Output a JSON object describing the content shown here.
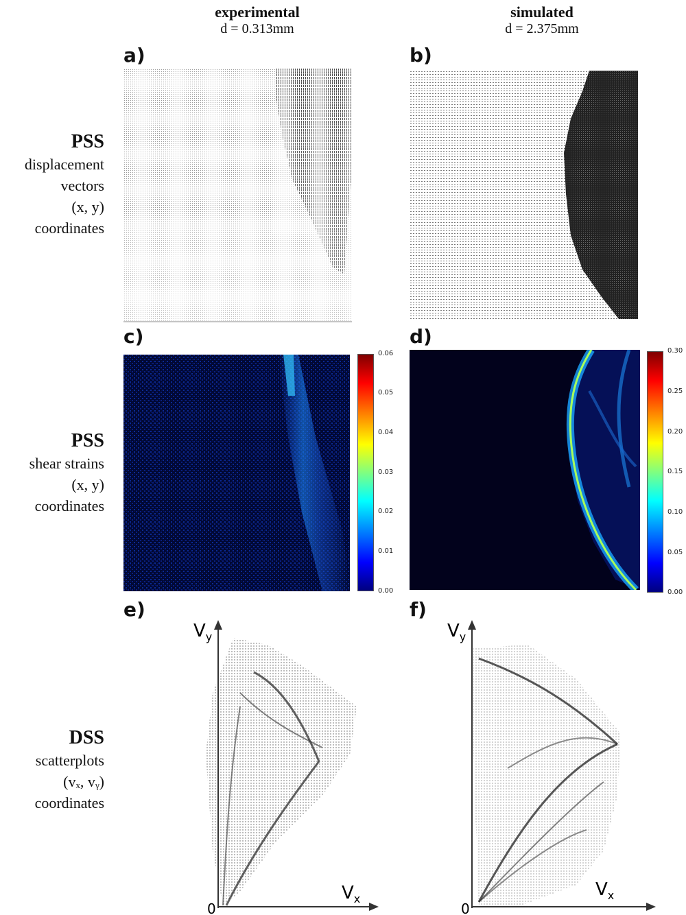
{
  "columns": [
    {
      "title": "experimental",
      "subtitle": "d = 0.313mm"
    },
    {
      "title": "simulated",
      "subtitle": "d = 2.375mm"
    }
  ],
  "rows": [
    {
      "title": "PSS",
      "lines": [
        "displacement",
        "vectors",
        "(x, y)",
        "coordinates"
      ]
    },
    {
      "title": "PSS",
      "lines": [
        "shear strains",
        "(x, y)",
        "coordinates"
      ]
    },
    {
      "title": "DSS",
      "lines": [
        "scatterplots",
        "(vₓ, vᵧ)",
        "coordinates"
      ]
    }
  ],
  "panels": [
    "a)",
    "b)",
    "c)",
    "d)",
    "e)",
    "f)"
  ],
  "colorbars": {
    "left": [
      "0.06",
      "0.05",
      "0.04",
      "0.03",
      "0.02",
      "0.01",
      "0.00"
    ],
    "right": [
      "0.30",
      "0.25",
      "0.20",
      "0.15",
      "0.10",
      "0.05",
      "0.00"
    ]
  },
  "axes": {
    "vy": "V",
    "vy_sub": "y",
    "vx": "V",
    "vx_sub": "x",
    "origin": "0"
  },
  "colors": {
    "jet_low": "#00007f",
    "jet_high": "#ff0000",
    "dark_bg": "#02021c",
    "dot": "#222222"
  }
}
